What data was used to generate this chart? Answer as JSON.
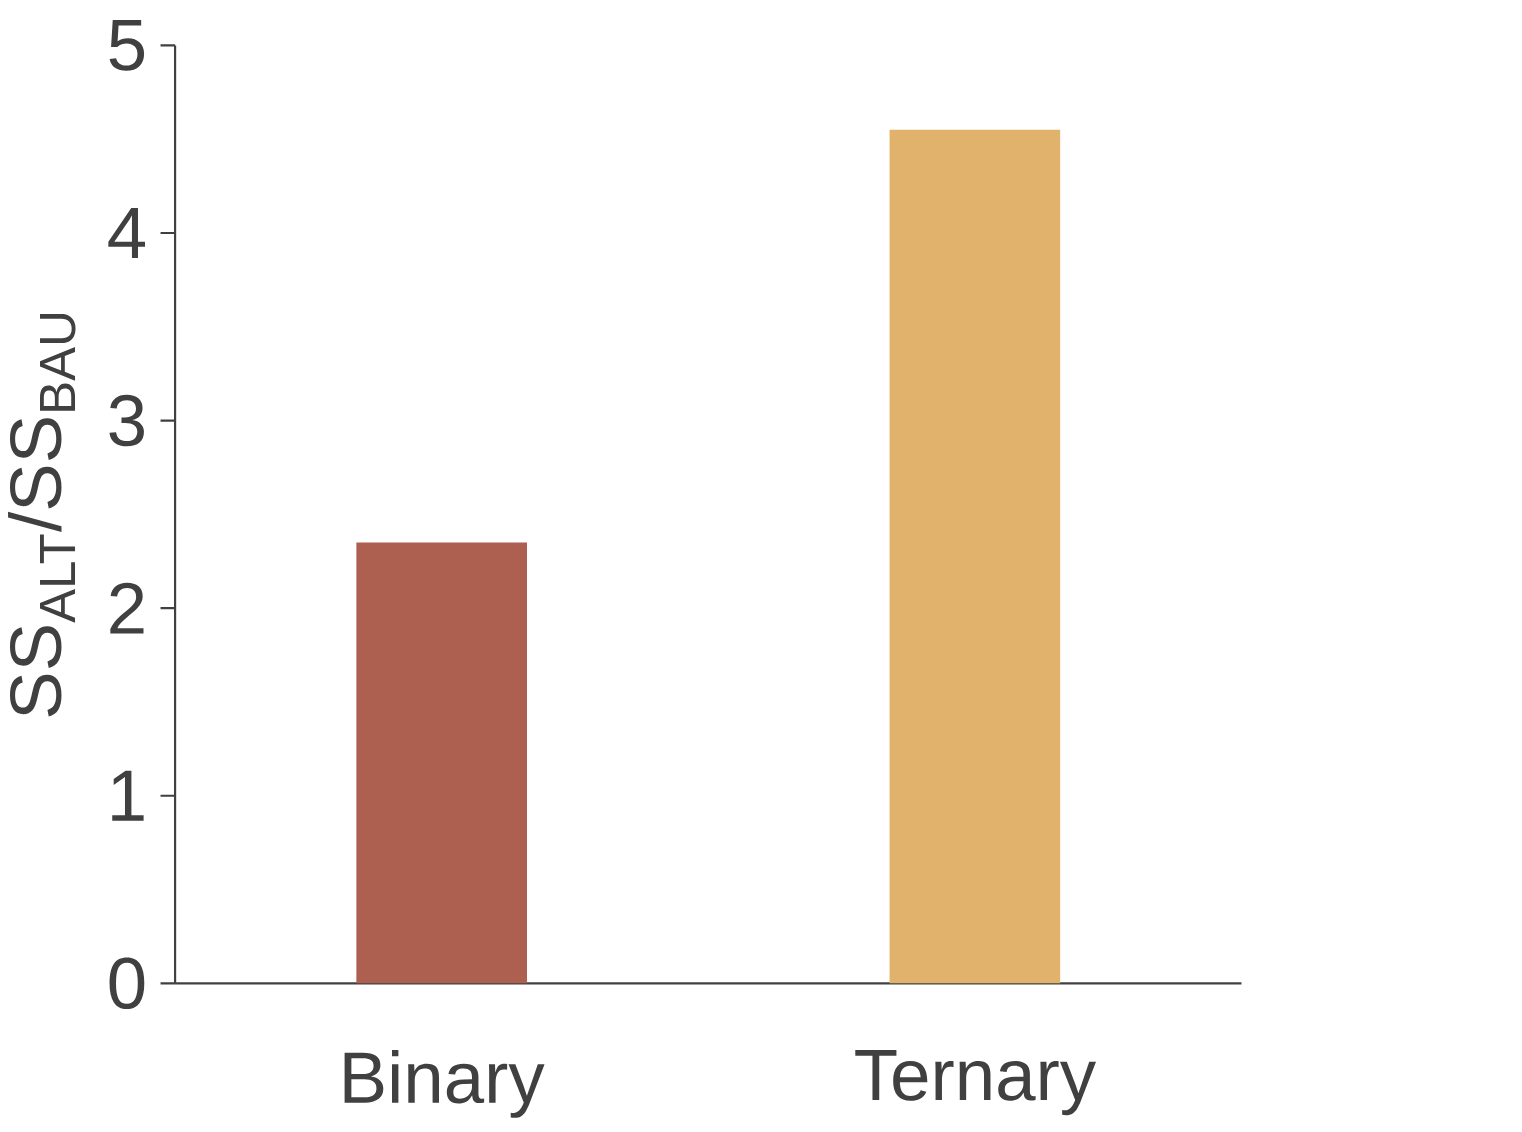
{
  "chart_data": {
    "type": "bar",
    "ylabel": "SS$_{ALT}$/SS$_{BAU}$",
    "categories": [
      "Binary",
      "Ternary"
    ],
    "values": [
      2.35,
      4.55
    ],
    "colors": [
      "#ad5f50",
      "#e0b26c"
    ],
    "ylim": [
      0,
      5
    ],
    "yticks": [
      0,
      1,
      2,
      3,
      4,
      5
    ],
    "grid": false
  }
}
